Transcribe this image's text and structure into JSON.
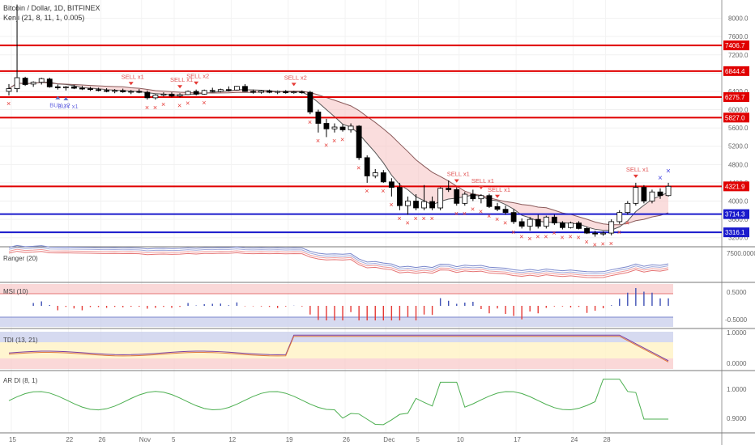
{
  "header": {
    "title": "Bitcoin / Dollar, 1D, BITFINEX",
    "indicator": "Kenji (21, 8, 11, 1, 0.005)"
  },
  "colors": {
    "up": "#ffffff",
    "down": "#000000",
    "sell": "#e53935",
    "buy": "#5c6bc0",
    "support": "#1a1acc",
    "resistance": "#e00000"
  },
  "chart_data": {
    "type": "candlestick",
    "x_ticks": [
      "15",
      "22",
      "26",
      "Nov",
      "5",
      "12",
      "19",
      "26",
      "Dec",
      "5",
      "10",
      "17",
      "24",
      "28"
    ],
    "y_ticks": [
      "8000.0",
      "7600.0",
      "7200.0",
      "6800.0",
      "6400.0",
      "6000.0",
      "5600.0",
      "5200.0",
      "4800.0",
      "4400.0",
      "4000.0",
      "3600.0",
      "3200.0"
    ],
    "y_range": [
      3000,
      8400
    ],
    "price_labels": [
      {
        "value": 7406.7,
        "label": "7406.7",
        "color": "#e00000"
      },
      {
        "value": 6844.4,
        "label": "6844.4",
        "color": "#e00000"
      },
      {
        "value": 6275.7,
        "label": "6275.7",
        "color": "#e00000"
      },
      {
        "value": 5827.0,
        "label": "5827.0",
        "color": "#e00000"
      },
      {
        "value": 4321.9,
        "label": "4321.9",
        "color": "#e00000"
      },
      {
        "value": 3714.3,
        "label": "3714.3",
        "color": "#1a1acc"
      },
      {
        "value": 3316.1,
        "label": "3316.1",
        "color": "#1a1acc"
      }
    ],
    "candles": [
      {
        "o": 6400,
        "h": 6560,
        "l": 6310,
        "c": 6460
      },
      {
        "o": 6460,
        "h": 8300,
        "l": 6380,
        "c": 6700
      },
      {
        "o": 6690,
        "h": 6720,
        "l": 6520,
        "c": 6550
      },
      {
        "o": 6560,
        "h": 6620,
        "l": 6500,
        "c": 6600
      },
      {
        "o": 6600,
        "h": 6700,
        "l": 6550,
        "c": 6680
      },
      {
        "o": 6670,
        "h": 6700,
        "l": 6480,
        "c": 6500
      },
      {
        "o": 6500,
        "h": 6550,
        "l": 6440,
        "c": 6480
      },
      {
        "o": 6480,
        "h": 6520,
        "l": 6420,
        "c": 6500
      },
      {
        "o": 6500,
        "h": 6540,
        "l": 6450,
        "c": 6470
      },
      {
        "o": 6470,
        "h": 6520,
        "l": 6430,
        "c": 6460
      },
      {
        "o": 6460,
        "h": 6500,
        "l": 6410,
        "c": 6440
      },
      {
        "o": 6440,
        "h": 6480,
        "l": 6400,
        "c": 6420
      },
      {
        "o": 6420,
        "h": 6470,
        "l": 6380,
        "c": 6400
      },
      {
        "o": 6400,
        "h": 6450,
        "l": 6360,
        "c": 6420
      },
      {
        "o": 6420,
        "h": 6460,
        "l": 6370,
        "c": 6390
      },
      {
        "o": 6390,
        "h": 6430,
        "l": 6340,
        "c": 6400
      },
      {
        "o": 6400,
        "h": 6450,
        "l": 6360,
        "c": 6380
      },
      {
        "o": 6380,
        "h": 6420,
        "l": 6220,
        "c": 6260
      },
      {
        "o": 6260,
        "h": 6340,
        "l": 6220,
        "c": 6320
      },
      {
        "o": 6320,
        "h": 6380,
        "l": 6290,
        "c": 6340
      },
      {
        "o": 6340,
        "h": 6380,
        "l": 6270,
        "c": 6300
      },
      {
        "o": 6300,
        "h": 6360,
        "l": 6270,
        "c": 6330
      },
      {
        "o": 6330,
        "h": 6420,
        "l": 6320,
        "c": 6400
      },
      {
        "o": 6400,
        "h": 6440,
        "l": 6310,
        "c": 6340
      },
      {
        "o": 6340,
        "h": 6440,
        "l": 6330,
        "c": 6420
      },
      {
        "o": 6420,
        "h": 6480,
        "l": 6380,
        "c": 6400
      },
      {
        "o": 6400,
        "h": 6460,
        "l": 6380,
        "c": 6440
      },
      {
        "o": 6440,
        "h": 6510,
        "l": 6400,
        "c": 6430
      },
      {
        "o": 6430,
        "h": 6520,
        "l": 6420,
        "c": 6510
      },
      {
        "o": 6510,
        "h": 6560,
        "l": 6390,
        "c": 6400
      },
      {
        "o": 6400,
        "h": 6440,
        "l": 6350,
        "c": 6380
      },
      {
        "o": 6380,
        "h": 6430,
        "l": 6350,
        "c": 6410
      },
      {
        "o": 6410,
        "h": 6440,
        "l": 6360,
        "c": 6380
      },
      {
        "o": 6380,
        "h": 6420,
        "l": 6340,
        "c": 6400
      },
      {
        "o": 6400,
        "h": 6430,
        "l": 6350,
        "c": 6370
      },
      {
        "o": 6370,
        "h": 6410,
        "l": 6350,
        "c": 6390
      },
      {
        "o": 6390,
        "h": 6420,
        "l": 6350,
        "c": 6380
      },
      {
        "o": 6380,
        "h": 6410,
        "l": 5900,
        "c": 5950
      },
      {
        "o": 5950,
        "h": 6000,
        "l": 5500,
        "c": 5700
      },
      {
        "o": 5700,
        "h": 5800,
        "l": 5400,
        "c": 5580
      },
      {
        "o": 5580,
        "h": 5700,
        "l": 5500,
        "c": 5620
      },
      {
        "o": 5620,
        "h": 5680,
        "l": 5520,
        "c": 5560
      },
      {
        "o": 5560,
        "h": 5700,
        "l": 5500,
        "c": 5640
      },
      {
        "o": 5640,
        "h": 5660,
        "l": 4900,
        "c": 4950
      },
      {
        "o": 4950,
        "h": 5000,
        "l": 4400,
        "c": 4550
      },
      {
        "o": 4550,
        "h": 4700,
        "l": 4500,
        "c": 4620
      },
      {
        "o": 4620,
        "h": 4680,
        "l": 4400,
        "c": 4420
      },
      {
        "o": 4420,
        "h": 4500,
        "l": 4100,
        "c": 4300
      },
      {
        "o": 4300,
        "h": 4400,
        "l": 3800,
        "c": 3900
      },
      {
        "o": 3900,
        "h": 4100,
        "l": 3700,
        "c": 4000
      },
      {
        "o": 4000,
        "h": 4150,
        "l": 3800,
        "c": 3850
      },
      {
        "o": 3850,
        "h": 4350,
        "l": 3800,
        "c": 3990
      },
      {
        "o": 3990,
        "h": 4100,
        "l": 3800,
        "c": 3850
      },
      {
        "o": 3850,
        "h": 4300,
        "l": 3800,
        "c": 4280
      },
      {
        "o": 4280,
        "h": 4450,
        "l": 4200,
        "c": 4250
      },
      {
        "o": 4250,
        "h": 4300,
        "l": 3900,
        "c": 3950
      },
      {
        "o": 3950,
        "h": 4200,
        "l": 3900,
        "c": 4150
      },
      {
        "o": 4150,
        "h": 4250,
        "l": 4000,
        "c": 4050
      },
      {
        "o": 4050,
        "h": 4150,
        "l": 3950,
        "c": 4120
      },
      {
        "o": 4120,
        "h": 4160,
        "l": 3850,
        "c": 3880
      },
      {
        "o": 3880,
        "h": 3960,
        "l": 3780,
        "c": 3820
      },
      {
        "o": 3820,
        "h": 3900,
        "l": 3700,
        "c": 3750
      },
      {
        "o": 3750,
        "h": 3820,
        "l": 3500,
        "c": 3550
      },
      {
        "o": 3550,
        "h": 3620,
        "l": 3400,
        "c": 3450
      },
      {
        "o": 3450,
        "h": 3650,
        "l": 3350,
        "c": 3600
      },
      {
        "o": 3600,
        "h": 3700,
        "l": 3400,
        "c": 3450
      },
      {
        "o": 3450,
        "h": 3680,
        "l": 3400,
        "c": 3650
      },
      {
        "o": 3650,
        "h": 3700,
        "l": 3480,
        "c": 3520
      },
      {
        "o": 3520,
        "h": 3560,
        "l": 3380,
        "c": 3420
      },
      {
        "o": 3420,
        "h": 3550,
        "l": 3400,
        "c": 3520
      },
      {
        "o": 3520,
        "h": 3560,
        "l": 3380,
        "c": 3400
      },
      {
        "o": 3400,
        "h": 3440,
        "l": 3280,
        "c": 3300
      },
      {
        "o": 3300,
        "h": 3350,
        "l": 3220,
        "c": 3280
      },
      {
        "o": 3280,
        "h": 3340,
        "l": 3240,
        "c": 3300
      },
      {
        "o": 3300,
        "h": 3600,
        "l": 3250,
        "c": 3550
      },
      {
        "o": 3550,
        "h": 3800,
        "l": 3500,
        "c": 3750
      },
      {
        "o": 3750,
        "h": 4000,
        "l": 3700,
        "c": 3950
      },
      {
        "o": 3950,
        "h": 4400,
        "l": 3900,
        "c": 4300
      },
      {
        "o": 4300,
        "h": 4350,
        "l": 3950,
        "c": 4000
      },
      {
        "o": 4000,
        "h": 4250,
        "l": 3950,
        "c": 4200
      },
      {
        "o": 4200,
        "h": 4280,
        "l": 4050,
        "c": 4120
      },
      {
        "o": 4120,
        "h": 4400,
        "l": 4100,
        "c": 4321.9
      }
    ],
    "signals": [
      {
        "i": 15,
        "type": "sell",
        "label": "SELL x1"
      },
      {
        "i": 21,
        "type": "sell",
        "label": "SELL x1"
      },
      {
        "i": 23,
        "type": "sell",
        "label": "SELL x2"
      },
      {
        "i": 35,
        "type": "sell",
        "label": "SELL x2"
      },
      {
        "i": 6,
        "type": "buy",
        "label": "BUY x2"
      },
      {
        "i": 7,
        "type": "buy",
        "label": "BUY x1"
      },
      {
        "i": 55,
        "type": "sell",
        "label": "SELL x1"
      },
      {
        "i": 58,
        "type": "sell",
        "label": "SELL x1"
      },
      {
        "i": 60,
        "type": "sell",
        "label": "SELL x1"
      },
      {
        "i": 77,
        "type": "sell",
        "label": "SELL x1"
      }
    ],
    "panes": [
      {
        "label": "Ranger (20)",
        "y_ticks": [
          "7500.0000"
        ]
      },
      {
        "label": "MSI (10)",
        "y_ticks": [
          "0.5000",
          "-0.5000"
        ]
      },
      {
        "label": "TDI (13, 21)",
        "y_ticks": [
          "1.0000",
          "0.0000"
        ]
      },
      {
        "label": "AR DI (8, 1)",
        "y_ticks": [
          "1.0000",
          "0.9000"
        ]
      }
    ]
  }
}
